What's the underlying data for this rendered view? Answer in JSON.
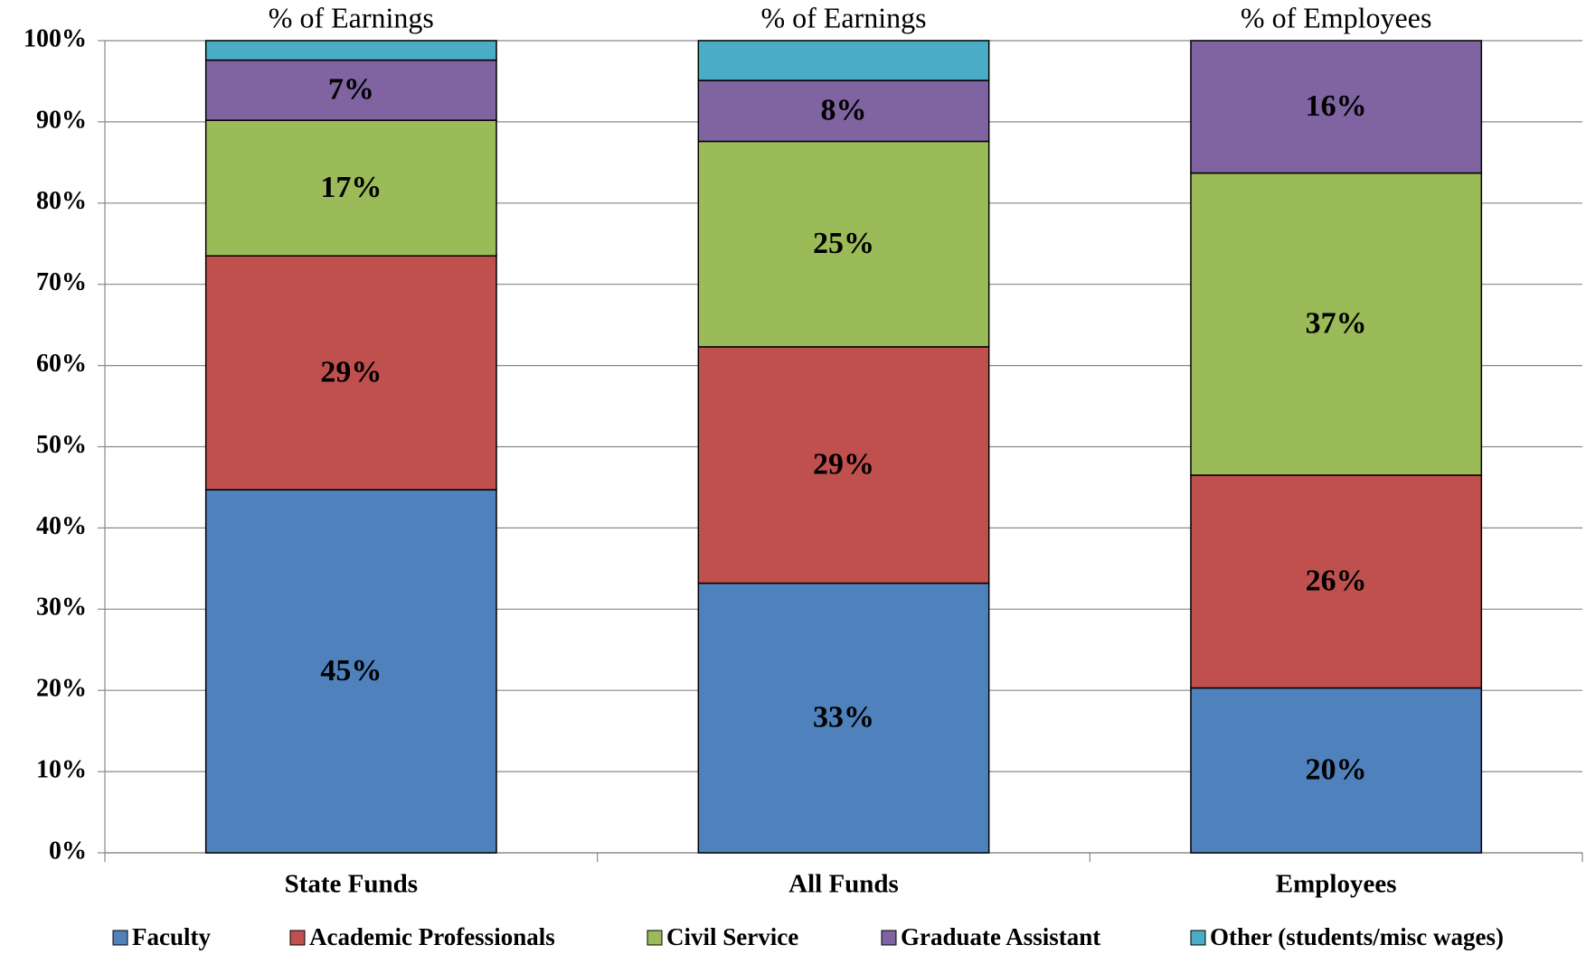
{
  "chart_data": {
    "type": "stacked_bar",
    "categories": [
      "State Funds",
      "All Funds",
      "Employees"
    ],
    "annotations": [
      "% of Earnings",
      "% of Earnings",
      "% of Employees"
    ],
    "series": [
      {
        "name": "Faculty",
        "color": "#4f81bd",
        "values": [
          44.7,
          33.2,
          20.3
        ],
        "value_labels": [
          "45%",
          "33%",
          "20%"
        ]
      },
      {
        "name": "Academic Professionals",
        "color": "#c0504d",
        "values": [
          28.8,
          29.1,
          26.2
        ],
        "value_labels": [
          "29%",
          "29%",
          "26%"
        ]
      },
      {
        "name": "Civil Service",
        "color": "#9bbb59",
        "values": [
          16.7,
          25.3,
          37.2
        ],
        "value_labels": [
          "17%",
          "25%",
          "37%"
        ]
      },
      {
        "name": "Graduate Assistant",
        "color": "#8064a2",
        "values": [
          7.4,
          7.5,
          16.3
        ],
        "value_labels": [
          "7%",
          "8%",
          "16%"
        ]
      },
      {
        "name": "Other (students/misc wages)",
        "color": "#4bacc6",
        "values": [
          2.4,
          4.9,
          0
        ],
        "value_labels": [
          null,
          null,
          null
        ]
      }
    ],
    "ylim": [
      0,
      100
    ],
    "yticks": [
      {
        "value": 0,
        "label": "0%"
      },
      {
        "value": 10,
        "label": "10%"
      },
      {
        "value": 20,
        "label": "20%"
      },
      {
        "value": 30,
        "label": "30%"
      },
      {
        "value": 40,
        "label": "40%"
      },
      {
        "value": 50,
        "label": "50%"
      },
      {
        "value": 60,
        "label": "60%"
      },
      {
        "value": 70,
        "label": "70%"
      },
      {
        "value": 80,
        "label": "80%"
      },
      {
        "value": 90,
        "label": "90%"
      },
      {
        "value": 100,
        "label": "100%"
      }
    ],
    "grid": true,
    "legend": "bottom"
  }
}
